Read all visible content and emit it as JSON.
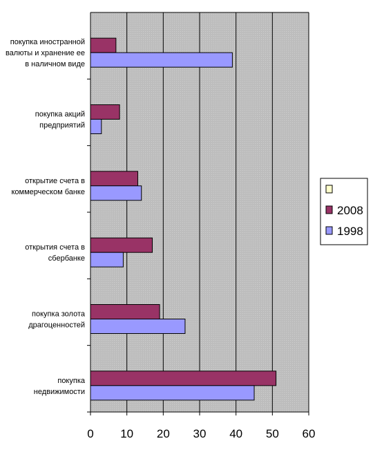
{
  "chart_data": {
    "type": "bar",
    "orientation": "horizontal",
    "categories": [
      [
        "покупка иностранной",
        "валюты и хранение ее",
        "в наличном виде"
      ],
      [
        "покупка акций",
        "предприятий"
      ],
      [
        "открытие счета в",
        "коммерческом банке"
      ],
      [
        "открытия счета в",
        "сбербанке"
      ],
      [
        "покупка золота",
        "драгоценностей"
      ],
      [
        "покупка",
        "недвижимости"
      ]
    ],
    "series": [
      {
        "name": "",
        "values": [
          0,
          0,
          0,
          0,
          0,
          0
        ],
        "color": "#FFFFCC"
      },
      {
        "name": "2008",
        "values": [
          7,
          8,
          13,
          17,
          19,
          51
        ],
        "color": "#993366"
      },
      {
        "name": "1998",
        "values": [
          39,
          3,
          14,
          9,
          26,
          45
        ],
        "color": "#9999FF"
      }
    ],
    "xlim": [
      0,
      60
    ],
    "xticks": [
      0,
      10,
      20,
      30,
      40,
      50,
      60
    ],
    "grid": true,
    "legend_position": "right",
    "plot_background": "#C0C0C0"
  }
}
